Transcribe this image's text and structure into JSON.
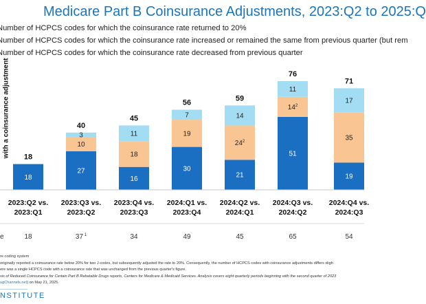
{
  "chart_data": {
    "type": "bar",
    "stacked": true,
    "title": "Medicare Part B Coinsurance Adjustments, 2023:Q2 to 2025:Q",
    "ylabel": "with a coinsurance adjustment",
    "categories": [
      [
        "2023:Q2 vs.",
        "2023:Q1"
      ],
      [
        "2023:Q3 vs.",
        "2023:Q2"
      ],
      [
        "2023:Q4 vs.",
        "2023:Q3"
      ],
      [
        "2024:Q1 vs.",
        "2023:Q4"
      ],
      [
        "2024:Q2 vs.",
        "2024:Q1"
      ],
      [
        "2024:Q3 vs.",
        "2024:Q2"
      ],
      [
        "2024:Q4 vs.",
        "2024:Q3"
      ]
    ],
    "series": [
      {
        "name": "Number of HCPCS codes for which the coinsurance rate decreased from previous quarter",
        "color": "#1b6fc2",
        "values": [
          18,
          27,
          16,
          30,
          21,
          51,
          19
        ]
      },
      {
        "name": "Number of HCPCS codes for which the coinsurance rate increased or remained the same from previous quarter (but rem",
        "color": "#f9c592",
        "values": [
          0,
          10,
          18,
          19,
          24,
          14,
          35
        ]
      },
      {
        "name": "Number of HCPCS codes for which the coinsurance rate returned to 20%",
        "color": "#a3ddf3",
        "values": [
          0,
          3,
          11,
          7,
          14,
          11,
          17
        ]
      }
    ],
    "segment_labels": [
      [
        "18",
        "27",
        "16",
        "30",
        "21",
        "51",
        "19"
      ],
      [
        "",
        "10",
        "18",
        "19",
        "24",
        "14",
        "35"
      ],
      [
        "",
        "3",
        "11",
        "7",
        "14",
        "11",
        "17"
      ]
    ],
    "segment_superscripts": [
      [
        "",
        "",
        "",
        "",
        "",
        "",
        ""
      ],
      [
        "",
        "",
        "",
        "",
        "2",
        "2",
        ""
      ],
      [
        "",
        "",
        "",
        "",
        "",
        "",
        ""
      ]
    ],
    "totals": [
      "18",
      "40",
      "45",
      "56",
      "59",
      "76",
      "71"
    ],
    "bottom_row": {
      "label": "e",
      "values": [
        "18",
        "37",
        "34",
        "49",
        "45",
        "65",
        "54"
      ],
      "superscripts": [
        "",
        "1",
        "",
        "",
        "",
        "",
        ""
      ]
    },
    "ylim": [
      0,
      80
    ],
    "legend_position": "top",
    "grid": false
  },
  "legend": {
    "items": [
      "Number of HCPCS codes for which the coinsurance rate returned to 20%",
      "Number of HCPCS codes for which the coinsurance rate increased or remained the same from previous quarter (but rem",
      "Number of HCPCS codes for which the coinsurance rate decreased from previous quarter"
    ]
  },
  "footnotes": {
    "lines": [
      "re coding system",
      " originally reported a coinsurance rate below 20% for two J-codes, but subsequently adjusted the rate to 20%. Consequently, the number of HCPCS codes with coinsurance adjustments differs sligh",
      " ere was a single HCPCS code with a coinsurance rate that was unchanged from the previous quarter's figure.",
      "sis of Reduced Coinsurance for Certain Part B Rebatable Drugs reports, Centers for Medicare & Medicaid Services. Analysis covers eight quarterly periods beginning with the second quarter of 2023"
    ],
    "source_link": "ugChannels.net",
    "source_suffix": ") on May 21, 2025."
  },
  "brand": "NSTITUTE"
}
